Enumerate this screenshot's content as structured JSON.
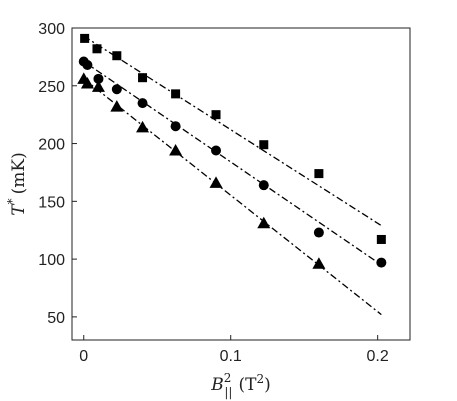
{
  "chart_data": {
    "type": "scatter",
    "xlabel": {
      "var": "B",
      "sub": "||",
      "sup": "2",
      "unit": "(T",
      "unit_sup": "2",
      "unit_close": ")"
    },
    "ylabel": {
      "var": "T",
      "sup": "*",
      "unit": "(mK)"
    },
    "xlim": [
      -0.008,
      0.222
    ],
    "ylim": [
      30,
      300
    ],
    "xticks": [
      0,
      0.1,
      0.2
    ],
    "xtick_labels": [
      "0",
      "0.1",
      "0.2"
    ],
    "yticks": [
      50,
      100,
      150,
      200,
      250,
      300
    ],
    "ytick_labels": [
      "50",
      "100",
      "150",
      "200",
      "250",
      "300"
    ],
    "grid": false,
    "series": [
      {
        "marker": "square",
        "color": "#000000",
        "points": [
          [
            0.0006,
            291
          ],
          [
            0.009,
            282
          ],
          [
            0.0225,
            276
          ],
          [
            0.04,
            257
          ],
          [
            0.0625,
            243
          ],
          [
            0.09,
            225
          ],
          [
            0.1225,
            199
          ],
          [
            0.16,
            174
          ],
          [
            0.2025,
            117
          ]
        ],
        "fit": [
          [
            0.0,
            293
          ],
          [
            0.2025,
            129
          ]
        ]
      },
      {
        "marker": "circle",
        "color": "#000000",
        "points": [
          [
            0.0,
            271
          ],
          [
            0.0025,
            268
          ],
          [
            0.01,
            256
          ],
          [
            0.0225,
            247
          ],
          [
            0.04,
            235
          ],
          [
            0.0625,
            215
          ],
          [
            0.09,
            194
          ],
          [
            0.1225,
            164
          ],
          [
            0.16,
            123
          ],
          [
            0.2025,
            97
          ]
        ],
        "fit": [
          [
            0.0,
            271
          ],
          [
            0.2025,
            95
          ]
        ]
      },
      {
        "marker": "triangle",
        "color": "#000000",
        "points": [
          [
            0.0,
            256
          ],
          [
            0.0025,
            252
          ],
          [
            0.01,
            249
          ],
          [
            0.0225,
            232
          ],
          [
            0.04,
            214
          ],
          [
            0.0625,
            194
          ],
          [
            0.09,
            166
          ],
          [
            0.1225,
            131
          ],
          [
            0.16,
            96
          ]
        ],
        "fit": [
          [
            0.0,
            256
          ],
          [
            0.2025,
            52
          ]
        ]
      }
    ]
  }
}
